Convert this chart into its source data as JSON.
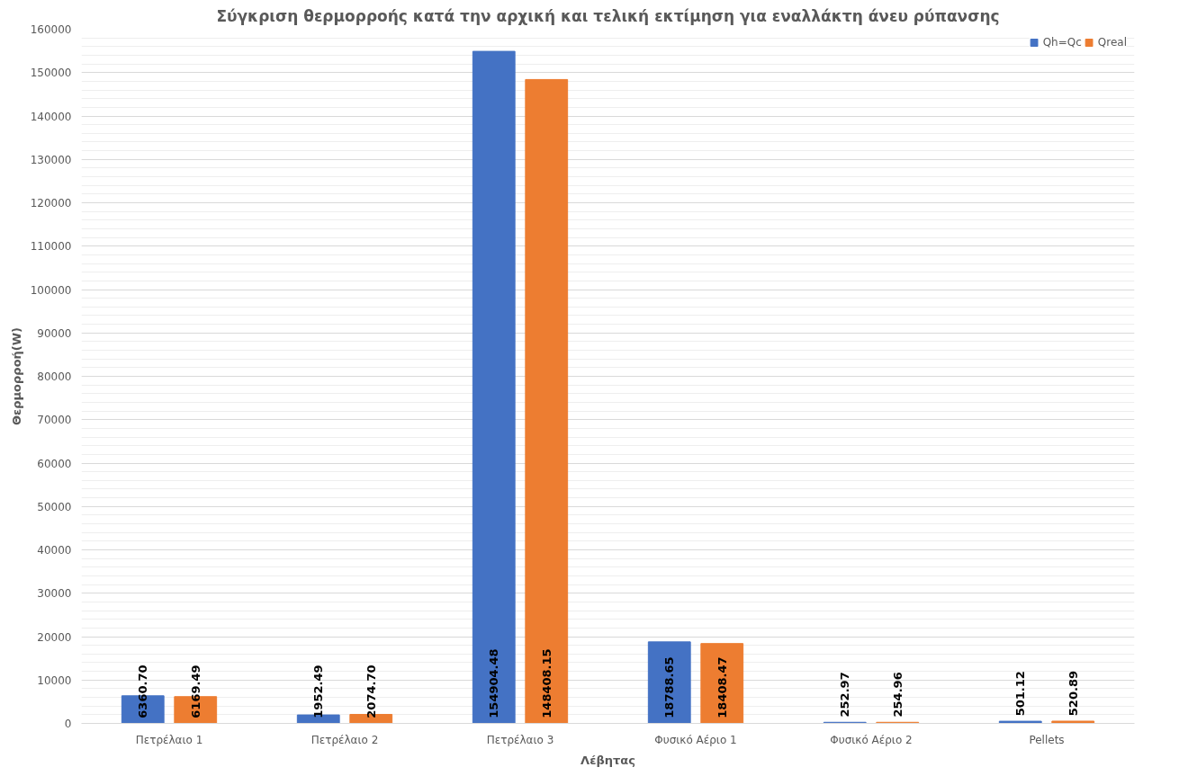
{
  "chart_data": {
    "type": "bar",
    "title": "Σύγκριση θερμορροής κατά την αρχική και τελική εκτίμηση για εναλλάκτη άνευ ρύπανσης",
    "xlabel": "Λέβητας",
    "ylabel": "Θερμορροή(W)",
    "categories": [
      "Πετρέλαιο 1",
      "Πετρέλαιο 2",
      "Πετρέλαιο 3",
      "Φυσικό Αέριο 1",
      "Φυσικό Αέριο 2",
      "Pellets"
    ],
    "series": [
      {
        "name": "Qh=Qc",
        "color": "#4472c4",
        "values": [
          6360.7,
          1952.49,
          154904.48,
          18788.65,
          252.97,
          501.12
        ],
        "value_labels": [
          "6360.70",
          "1952.49",
          "154904.48",
          "18788.65",
          "252.97",
          "501.12"
        ]
      },
      {
        "name": "Qreal",
        "color": "#ed7d31",
        "values": [
          6169.49,
          2074.7,
          148408.15,
          18408.47,
          254.96,
          520.89
        ],
        "value_labels": [
          "6169.49",
          "2074.70",
          "148408.15",
          "18408.47",
          "254.96",
          "520.89"
        ]
      }
    ],
    "ylim": [
      0,
      160000
    ],
    "yticks": [
      0,
      10000,
      20000,
      30000,
      40000,
      50000,
      60000,
      70000,
      80000,
      90000,
      100000,
      110000,
      120000,
      130000,
      140000,
      150000,
      160000
    ],
    "grid": "y",
    "legend": "top right"
  }
}
